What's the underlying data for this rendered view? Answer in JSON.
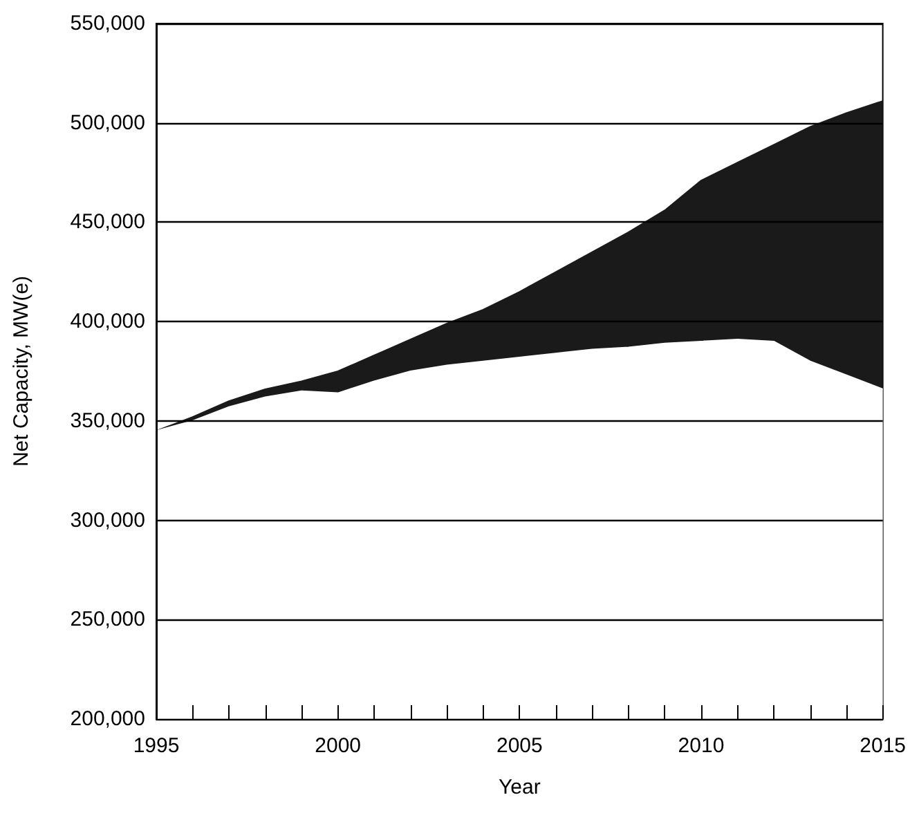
{
  "chart_data": {
    "type": "area",
    "xlabel": "Year",
    "ylabel": "Net Capacity, MW(e)",
    "x": [
      1995,
      1996,
      1997,
      1998,
      1999,
      2000,
      2001,
      2002,
      2003,
      2004,
      2005,
      2006,
      2007,
      2008,
      2009,
      2010,
      2011,
      2012,
      2013,
      2014,
      2015
    ],
    "series": [
      {
        "color": "#1a1a1a",
        "values": [
          345000,
          352000,
          360000,
          366000,
          370000,
          375000,
          383000,
          391000,
          399000,
          406000,
          415000,
          425000,
          435000,
          445000,
          456000,
          471000,
          480000,
          489000,
          498000,
          505000,
          511000
        ]
      },
      {
        "color": "#ffffff",
        "values": [
          345000,
          350000,
          357000,
          362000,
          365000,
          364000,
          370000,
          375000,
          378000,
          380000,
          382000,
          384000,
          386000,
          387000,
          389000,
          390000,
          391000,
          390000,
          380000,
          373000,
          366000
        ]
      }
    ],
    "xlim": [
      1995,
      2015
    ],
    "xticks": [
      {
        "value": 1995,
        "label": "1995"
      },
      {
        "value": 1996,
        "label": null
      },
      {
        "value": 1997,
        "label": null
      },
      {
        "value": 1998,
        "label": null
      },
      {
        "value": 1999,
        "label": null
      },
      {
        "value": 2000,
        "label": "2000"
      },
      {
        "value": 2001,
        "label": null
      },
      {
        "value": 2002,
        "label": null
      },
      {
        "value": 2003,
        "label": null
      },
      {
        "value": 2004,
        "label": null
      },
      {
        "value": 2005,
        "label": "2005"
      },
      {
        "value": 2006,
        "label": null
      },
      {
        "value": 2007,
        "label": null
      },
      {
        "value": 2008,
        "label": null
      },
      {
        "value": 2009,
        "label": null
      },
      {
        "value": 2010,
        "label": "2010"
      },
      {
        "value": 2011,
        "label": null
      },
      {
        "value": 2012,
        "label": null
      },
      {
        "value": 2013,
        "label": null
      },
      {
        "value": 2014,
        "label": null
      },
      {
        "value": 2015,
        "label": "2015"
      }
    ],
    "ylim": [
      200000,
      550000
    ],
    "yticks": [
      {
        "value": 200000,
        "label": "200,000"
      },
      {
        "value": 250000,
        "label": "250,000"
      },
      {
        "value": 300000,
        "label": "300,000"
      },
      {
        "value": 350000,
        "label": "350,000"
      },
      {
        "value": 400000,
        "label": "400,000"
      },
      {
        "value": 450000,
        "label": "450,000"
      },
      {
        "value": 500000,
        "label": "500,000"
      },
      {
        "value": 550000,
        "label": "550,000"
      }
    ],
    "grid": "y"
  }
}
